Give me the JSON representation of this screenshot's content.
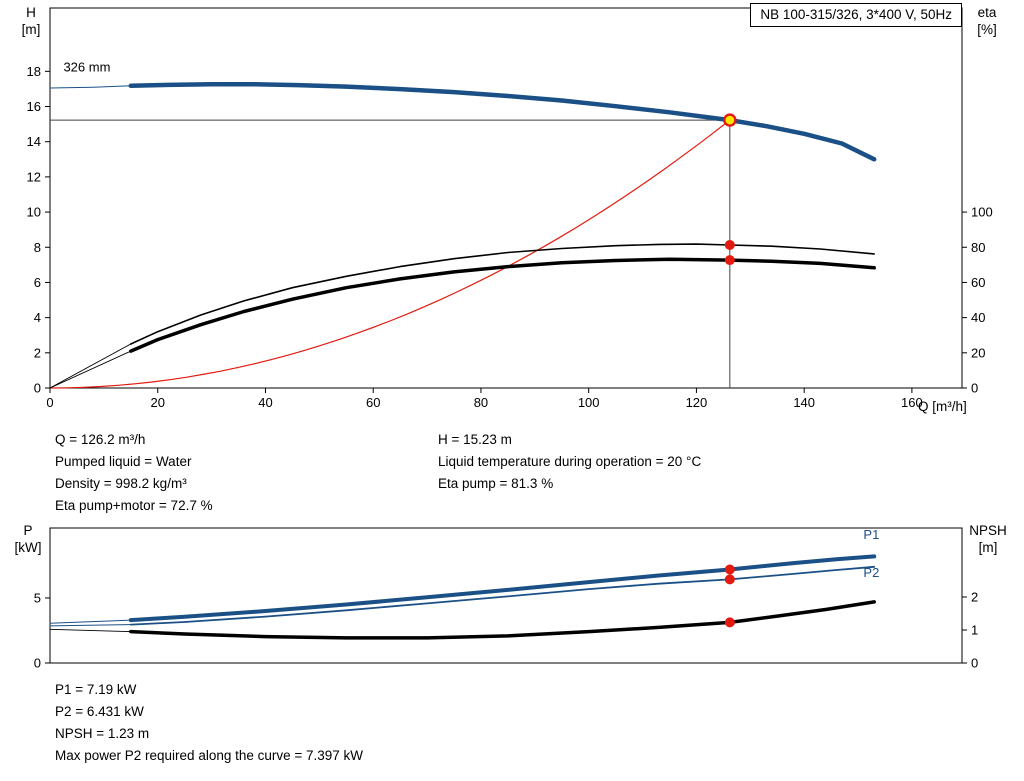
{
  "title_box": "NB 100-315/326, 3*400 V, 50Hz",
  "colors": {
    "blue": "#1b5086",
    "red": "#e31a0f",
    "black": "#000000",
    "yellow": "#ffe600",
    "crosshair": "#444444"
  },
  "info_top": {
    "left": [
      "Q = 126.2 m³/h",
      "Pumped liquid = Water",
      "Density = 998.2 kg/m³",
      "Eta pump+motor = 72.7 %"
    ],
    "right": [
      "H = 15.23 m",
      "Liquid temperature during operation = 20 °C",
      "Eta pump = 81.3 %"
    ]
  },
  "info_bottom": [
    "P1 = 7.19 kW",
    "P2 = 6.431 kW",
    "NPSH = 1.23 m",
    "Max power P2 required along the curve = 7.397 kW"
  ],
  "chart_data": [
    {
      "type": "line",
      "title": "NB 100-315/326, 3*400 V, 50Hz",
      "x_axis": {
        "name": "Q",
        "unit": "[m³/h]",
        "title": "Q [m³/h]",
        "min": 0,
        "max": 169.3,
        "ticks": [
          0,
          20,
          40,
          60,
          80,
          100,
          120,
          140,
          160
        ],
        "show_labels": true
      },
      "y_left": {
        "name": "H",
        "unit": "[m]",
        "min": 0,
        "max": 21.6,
        "ticks": [
          0,
          2,
          4,
          6,
          8,
          10,
          12,
          14,
          16,
          18
        ]
      },
      "y_right": {
        "name": "eta",
        "unit": "[%]",
        "min": 0,
        "max": 216,
        "ticks": [
          0,
          20,
          40,
          60,
          80,
          100
        ]
      },
      "grid": false,
      "annotations": [
        {
          "q": 2.5,
          "v": 18.0,
          "axis": "left",
          "text": "326 mm",
          "color": "#000000"
        }
      ],
      "series": [
        {
          "name": "head-curve-326mm",
          "color": "#1b5086",
          "width": 4.5,
          "axis": "left",
          "points": [
            [
              15,
              17.18
            ],
            [
              22,
              17.23
            ],
            [
              30,
              17.27
            ],
            [
              38,
              17.27
            ],
            [
              46,
              17.22
            ],
            [
              55,
              17.13
            ],
            [
              65,
              16.99
            ],
            [
              75,
              16.82
            ],
            [
              85,
              16.6
            ],
            [
              95,
              16.34
            ],
            [
              105,
              16.02
            ],
            [
              115,
              15.67
            ],
            [
              126.2,
              15.23
            ],
            [
              133,
              14.88
            ],
            [
              140,
              14.45
            ],
            [
              147,
              13.9
            ],
            [
              153,
              13.0
            ]
          ]
        },
        {
          "name": "head-curve-leadin",
          "color": "#1b5086",
          "width": 1,
          "axis": "left",
          "points": [
            [
              0,
              17.05
            ],
            [
              8,
              17.1
            ],
            [
              15,
              17.18
            ]
          ]
        },
        {
          "name": "eta-pump-curve",
          "color": "#000000",
          "width": 1.6,
          "axis": "right",
          "points": [
            [
              15,
              25
            ],
            [
              20,
              32
            ],
            [
              28,
              41.5
            ],
            [
              36,
              49.5
            ],
            [
              45,
              57
            ],
            [
              55,
              63.5
            ],
            [
              65,
              69
            ],
            [
              75,
              73.5
            ],
            [
              85,
              77
            ],
            [
              95,
              79.3
            ],
            [
              105,
              80.9
            ],
            [
              113,
              81.6
            ],
            [
              120,
              81.8
            ],
            [
              126.2,
              81.3
            ],
            [
              134,
              80.6
            ],
            [
              143,
              79
            ],
            [
              153,
              76.2
            ]
          ]
        },
        {
          "name": "eta-pump-leadin",
          "color": "#000000",
          "width": 0.9,
          "axis": "right",
          "points": [
            [
              0,
              0
            ],
            [
              15,
              25
            ]
          ]
        },
        {
          "name": "eta-pump-motor-curve",
          "color": "#000000",
          "width": 3.5,
          "axis": "right",
          "points": [
            [
              15,
              21
            ],
            [
              20,
              27.5
            ],
            [
              28,
              36
            ],
            [
              36,
              43.5
            ],
            [
              45,
              50.5
            ],
            [
              55,
              57
            ],
            [
              65,
              62
            ],
            [
              75,
              66
            ],
            [
              85,
              69
            ],
            [
              95,
              71.2
            ],
            [
              105,
              72.5
            ],
            [
              115,
              73.2
            ],
            [
              126.2,
              72.7
            ],
            [
              134,
              72.1
            ],
            [
              143,
              70.8
            ],
            [
              153,
              68.3
            ]
          ]
        },
        {
          "name": "eta-pump-motor-leadin",
          "color": "#000000",
          "width": 0.9,
          "axis": "right",
          "points": [
            [
              0,
              0
            ],
            [
              15,
              21
            ]
          ]
        }
      ],
      "system_curve": {
        "q_end": 126.2,
        "v_end": 15.23,
        "color": "#e31a0f",
        "width": 1.2
      },
      "crosshair": {
        "q": 126.2,
        "v": 15.23,
        "color": "#444444"
      },
      "markers": [
        {
          "q": 126.2,
          "v": 81.3,
          "axis": "right",
          "type": "dot",
          "name": "eta-pump-marker"
        },
        {
          "q": 126.2,
          "v": 72.7,
          "axis": "right",
          "type": "dot",
          "name": "eta-pump-motor-marker"
        },
        {
          "q": 126.2,
          "v": 15.23,
          "axis": "left",
          "type": "duty-point",
          "name": "duty-point-marker"
        }
      ],
      "operating_point": {
        "Q_m3h": 126.2,
        "H_m": 15.23,
        "eta_pump_pct": 81.3,
        "eta_pump_motor_pct": 72.7
      }
    },
    {
      "type": "line",
      "x_axis": {
        "name": "Q",
        "unit": "[m³/h]",
        "title": "",
        "min": 0,
        "max": 169.3,
        "ticks": [],
        "show_labels": false
      },
      "y_left": {
        "name": "P",
        "unit": "[kW]",
        "min": 0,
        "max": 10.38,
        "ticks": [
          0,
          5
        ]
      },
      "y_right": {
        "name": "NPSH",
        "unit": "[m]",
        "min": 0,
        "max": 4.09,
        "ticks": [
          0,
          1,
          2
        ]
      },
      "grid": false,
      "annotations": [
        {
          "q": 151,
          "v": 9.55,
          "axis": "left",
          "text": "P1",
          "color": "#1b5086"
        },
        {
          "q": 151,
          "v": 6.62,
          "axis": "left",
          "text": "P2",
          "color": "#1b5086"
        }
      ],
      "series": [
        {
          "name": "p1-curve",
          "color": "#1b5086",
          "width": 4,
          "axis": "left",
          "points": [
            [
              15,
              3.3
            ],
            [
              25,
              3.55
            ],
            [
              40,
              4.0
            ],
            [
              55,
              4.5
            ],
            [
              70,
              5.05
            ],
            [
              85,
              5.62
            ],
            [
              100,
              6.22
            ],
            [
              113,
              6.73
            ],
            [
              126.2,
              7.19
            ],
            [
              138,
              7.68
            ],
            [
              146,
              7.97
            ],
            [
              153,
              8.2
            ]
          ]
        },
        {
          "name": "p1-leadin",
          "color": "#1b5086",
          "width": 1,
          "axis": "left",
          "points": [
            [
              0,
              3.05
            ],
            [
              15,
              3.3
            ]
          ]
        },
        {
          "name": "p2-curve",
          "color": "#1b5086",
          "width": 1.8,
          "axis": "left",
          "points": [
            [
              15,
              2.95
            ],
            [
              25,
              3.15
            ],
            [
              40,
              3.57
            ],
            [
              55,
              4.05
            ],
            [
              70,
              4.58
            ],
            [
              85,
              5.12
            ],
            [
              100,
              5.68
            ],
            [
              113,
              6.1
            ],
            [
              126.2,
              6.431
            ],
            [
              138,
              6.85
            ],
            [
              146,
              7.15
            ],
            [
              153,
              7.397
            ]
          ]
        },
        {
          "name": "p2-leadin",
          "color": "#1b5086",
          "width": 1,
          "axis": "left",
          "points": [
            [
              0,
              2.85
            ],
            [
              15,
              2.95
            ]
          ]
        },
        {
          "name": "npsh-curve",
          "color": "#000000",
          "width": 3.5,
          "axis": "right",
          "points": [
            [
              15,
              0.95
            ],
            [
              25,
              0.88
            ],
            [
              40,
              0.8
            ],
            [
              55,
              0.76
            ],
            [
              70,
              0.76
            ],
            [
              85,
              0.82
            ],
            [
              100,
              0.95
            ],
            [
              113,
              1.08
            ],
            [
              126.2,
              1.23
            ],
            [
              135,
              1.42
            ],
            [
              144,
              1.62
            ],
            [
              153,
              1.85
            ]
          ]
        },
        {
          "name": "npsh-leadin",
          "color": "#000000",
          "width": 0.9,
          "axis": "right",
          "points": [
            [
              0,
              1.02
            ],
            [
              15,
              0.95
            ]
          ]
        }
      ],
      "markers": [
        {
          "q": 126.2,
          "v": 7.19,
          "axis": "left",
          "type": "dot",
          "name": "p1-marker"
        },
        {
          "q": 126.2,
          "v": 6.431,
          "axis": "left",
          "type": "dot",
          "name": "p2-marker"
        },
        {
          "q": 126.2,
          "v": 1.23,
          "axis": "right",
          "type": "dot",
          "name": "npsh-marker"
        }
      ],
      "operating_point": {
        "P1_kW": 7.19,
        "P2_kW": 6.431,
        "NPSH_m": 1.23,
        "max_P2_along_curve_kW": 7.397
      }
    }
  ]
}
